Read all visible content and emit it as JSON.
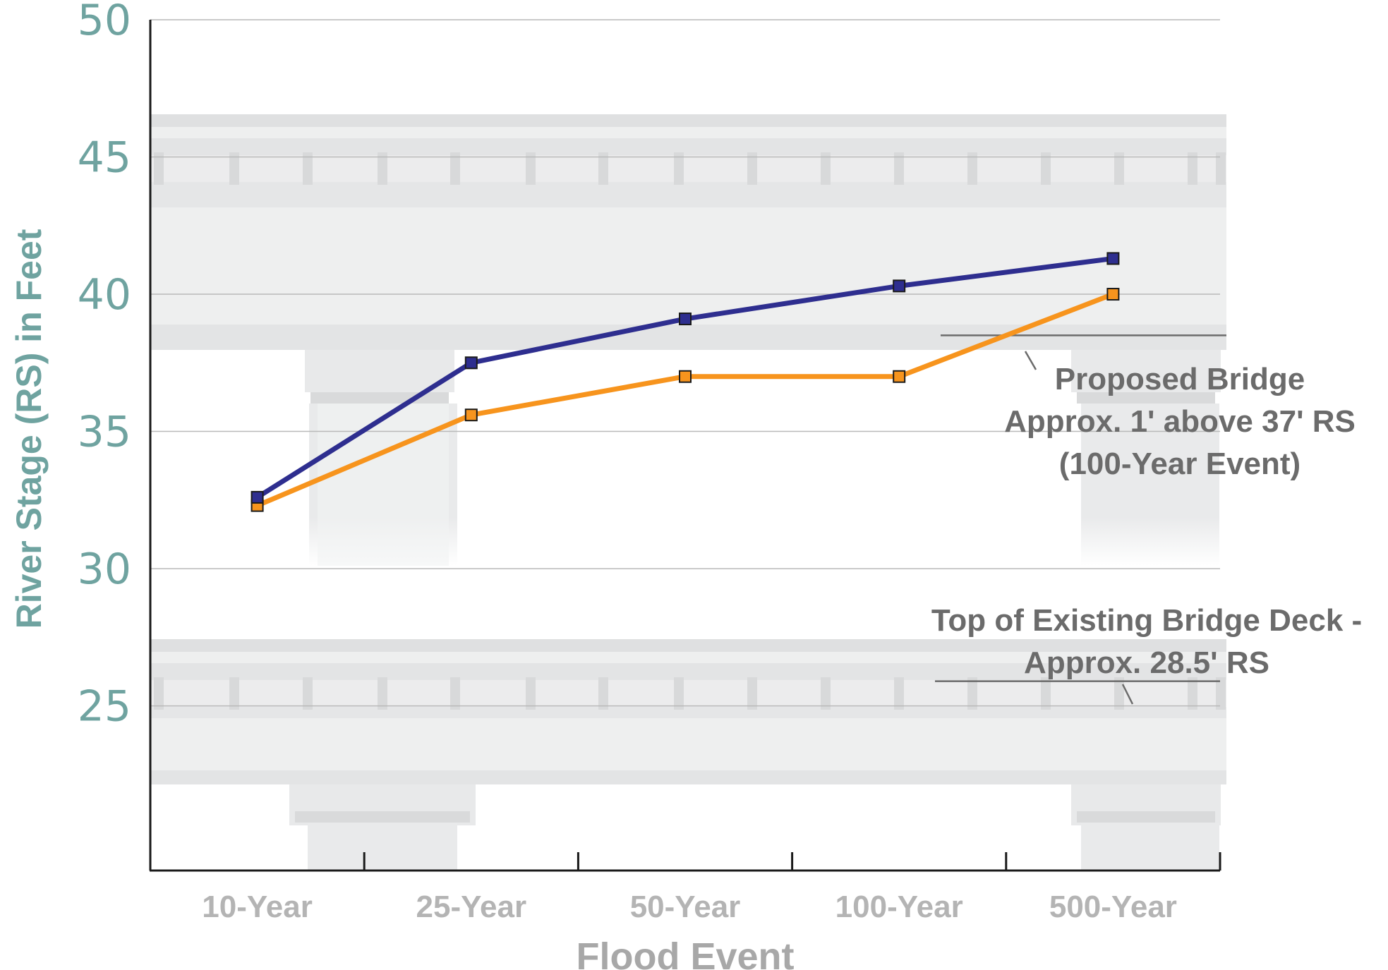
{
  "chart_data": {
    "type": "line",
    "categories": [
      "10-Year",
      "25-Year",
      "50-Year",
      "100-Year",
      "500-Year"
    ],
    "xlabel": "Flood Event",
    "ylabel": "River Stage (RS) in Feet",
    "ylim": [
      19,
      50
    ],
    "yticks": [
      25,
      30,
      35,
      40,
      45,
      50
    ],
    "grid": true,
    "series": [
      {
        "color": "#2e2e8f",
        "values": [
          32.6,
          37.5,
          39.1,
          40.3,
          41.3
        ]
      },
      {
        "color": "#f7941d",
        "values": [
          32.3,
          35.6,
          37.0,
          37.0,
          40.0
        ]
      }
    ],
    "annotations": [
      {
        "lines": [
          "Proposed Bridge",
          "Approx. 1' above 37' RS",
          "(100-Year Event)"
        ],
        "ref_y": 38.5
      },
      {
        "lines": [
          "Top of Existing Bridge Deck -",
          "Approx. 28.5' RS"
        ],
        "ref_y": 25.9
      }
    ]
  }
}
